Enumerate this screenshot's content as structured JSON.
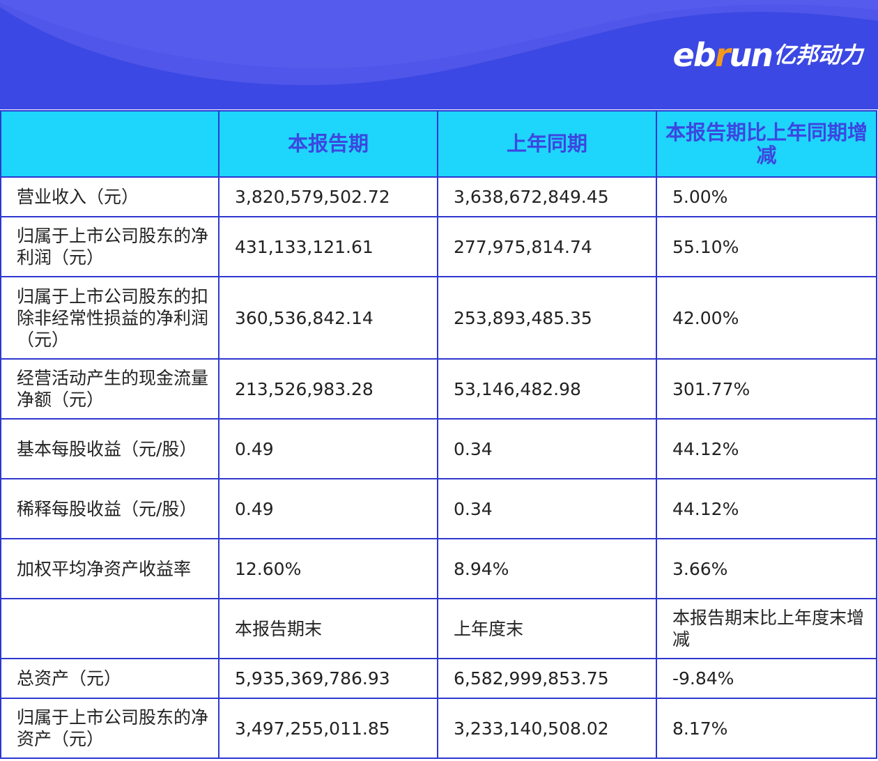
{
  "brand": {
    "latin_prefix": "eb",
    "latin_accent": "r",
    "latin_suffix": "un",
    "cn": "亿邦动力",
    "accent_color": "#f39a1e",
    "header_color": "#3c48e3"
  },
  "table": {
    "header": [
      "",
      "本报告期",
      "上年同期",
      "本报告期比上年同期增减"
    ],
    "rows": [
      [
        "营业收入（元）",
        "3,820,579,502.72",
        "3,638,672,849.45",
        "5.00%"
      ],
      [
        "归属于上市公司股东的净利润（元）",
        "431,133,121.61",
        "277,975,814.74",
        "55.10%"
      ],
      [
        "归属于上市公司股东的扣除非经常性损益的净利润（元）",
        "360,536,842.14",
        "253,893,485.35",
        "42.00%"
      ],
      [
        "经营活动产生的现金流量净额（元）",
        "213,526,983.28",
        "53,146,482.98",
        "301.77%"
      ],
      [
        "基本每股收益（元/股）",
        "0.49",
        "0.34",
        "44.12%"
      ],
      [
        "稀释每股收益（元/股）",
        "0.49",
        "0.34",
        "44.12%"
      ],
      [
        "加权平均净资产收益率",
        "12.60%",
        "8.94%",
        "3.66%"
      ],
      [
        "",
        "本报告期末",
        "上年度末",
        "本报告期末比上年度末增减"
      ],
      [
        "总资产（元）",
        "5,935,369,786.93",
        "6,582,999,853.75",
        "-9.84%"
      ],
      [
        "归属于上市公司股东的净资产（元）",
        "3,497,255,011.85",
        "3,233,140,508.02",
        "8.17%"
      ]
    ]
  }
}
